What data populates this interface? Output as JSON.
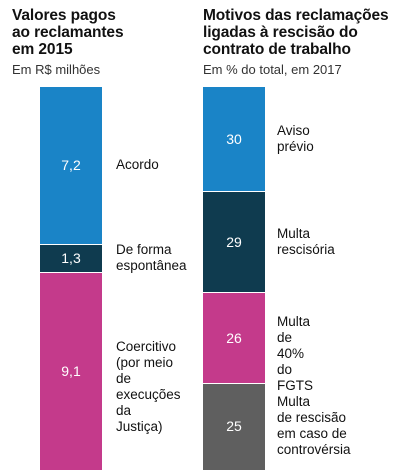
{
  "colors": {
    "blue": "#1a84c7",
    "dark_teal": "#0f3b4f",
    "magenta": "#c43a8b",
    "gray": "#5f5f5f"
  },
  "chart_data": [
    {
      "type": "bar",
      "stacked": true,
      "title": "Valores pagos\nao reclamantes\nem 2015",
      "subtitle": "Em R$ milhões",
      "categories": [
        "Acordo",
        "De forma\nespontânea",
        "Coercitivo\n(por meio\nde execuções\nda Justiça)"
      ],
      "values": [
        7.2,
        1.3,
        9.1
      ],
      "value_labels": [
        "7,2",
        "1,3",
        "9,1"
      ],
      "colors": [
        "#1a84c7",
        "#0f3b4f",
        "#c43a8b"
      ]
    },
    {
      "type": "bar",
      "stacked": true,
      "title": "Motivos das reclamações\nligadas à rescisão do\ncontrato de trabalho",
      "subtitle": "Em % do total, em 2017",
      "categories": [
        "Aviso\nprévio",
        "Multa\nrescisória",
        "Multa\nde 40%\ndo FGTS",
        "Multa\nde rescisão\nem caso de\ncontrovérsia"
      ],
      "values": [
        30,
        29,
        26,
        25
      ],
      "value_labels": [
        "30",
        "29",
        "26",
        "25"
      ],
      "colors": [
        "#1a84c7",
        "#0f3b4f",
        "#c43a8b",
        "#5f5f5f"
      ]
    }
  ]
}
